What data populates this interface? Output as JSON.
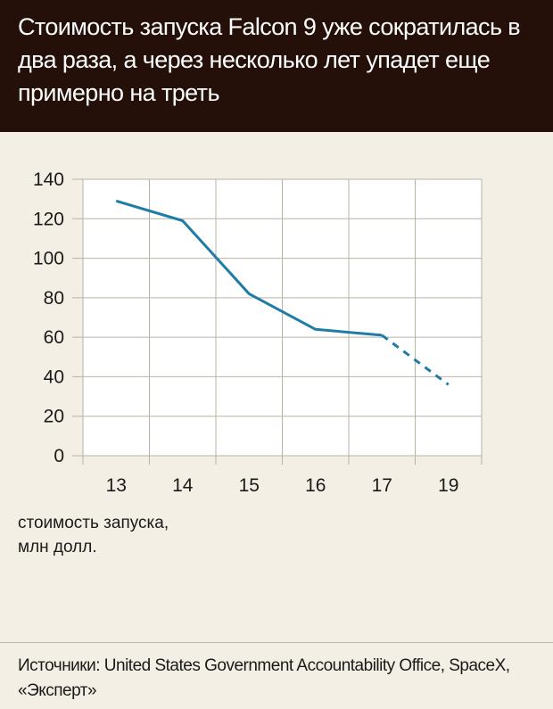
{
  "header": {
    "title": "Стоимость запуска Falcon 9 уже сократилась в два раза, а через несколько лет упадет еще примерно на треть"
  },
  "chart_data": {
    "type": "line",
    "ylabel": "стоимость запуска,\nмлн долл.",
    "x": [
      "13",
      "14",
      "15",
      "16",
      "17",
      "19"
    ],
    "series": [
      {
        "values": [
          129,
          119,
          82,
          64,
          61,
          null
        ],
        "style": "solid"
      },
      {
        "values": [
          null,
          null,
          null,
          null,
          61,
          36
        ],
        "style": "dashed"
      }
    ],
    "ylim": [
      0,
      140
    ],
    "yticks": [
      0,
      20,
      40,
      60,
      80,
      100,
      120,
      140
    ],
    "grid": true,
    "line_color": "#1e7ca6"
  },
  "footer": {
    "source": "Источники: United States Government Accountability Office, SpaceX, «Эксперт»"
  }
}
